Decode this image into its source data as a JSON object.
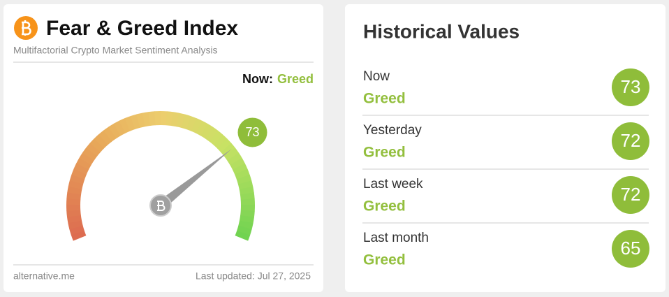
{
  "gauge": {
    "title": "Fear & Greed Index",
    "subtitle": "Multifactorial Crypto Market Sentiment Analysis",
    "now_label": "Now:",
    "now_classification": "Greed",
    "value": 73,
    "range": [
      0,
      100
    ],
    "source": "alternative.me",
    "updated": "Last updated: Jul 27, 2025"
  },
  "historical": {
    "title": "Historical Values",
    "rows": [
      {
        "label": "Now",
        "classification": "Greed",
        "value": 73
      },
      {
        "label": "Yesterday",
        "classification": "Greed",
        "value": 72
      },
      {
        "label": "Last week",
        "classification": "Greed",
        "value": 72
      },
      {
        "label": "Last month",
        "classification": "Greed",
        "value": 65
      }
    ]
  }
}
